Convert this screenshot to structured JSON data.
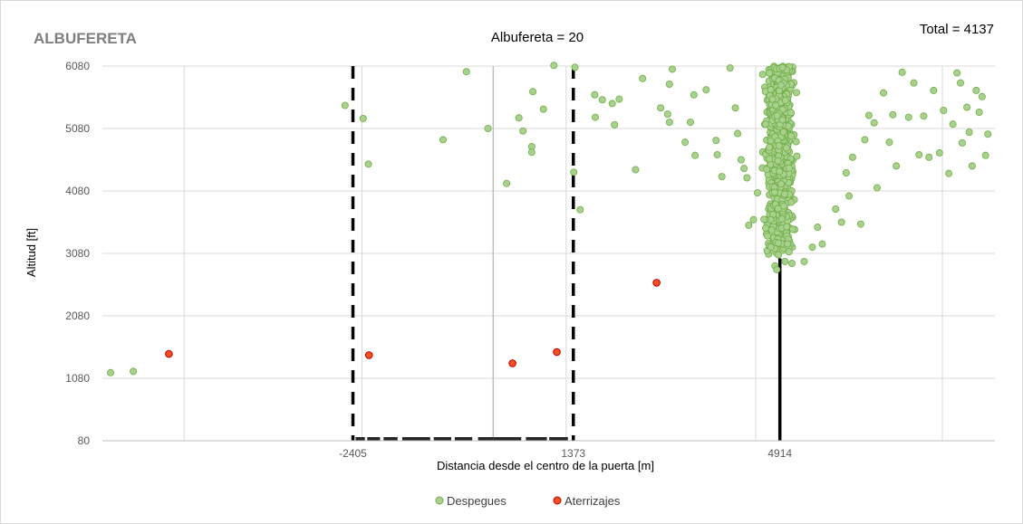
{
  "chart_data": {
    "type": "scatter",
    "title": "ALBUFERETA",
    "subtitle": "Albufereta =  20",
    "total_label": "Total =  4137",
    "xlabel": "Distancia desde el centro de la puerta [m]",
    "ylabel": "Altitud [ft]",
    "xlim": [
      -6700,
      8600
    ],
    "ylim": [
      80,
      6080
    ],
    "y_ticks": [
      80,
      1080,
      2080,
      3080,
      4080,
      5080,
      6080
    ],
    "x_ticks": [
      {
        "value": -2405,
        "label": "-2405"
      },
      {
        "value": 1373,
        "label": "1373"
      },
      {
        "value": 4914,
        "label": "4914"
      }
    ],
    "x_gridlines": [
      -5300,
      -2250,
      1250,
      4500,
      7700
    ],
    "grid": true,
    "legend_position": "bottom",
    "reference_lines": [
      {
        "x": -2405,
        "style": "dashed",
        "color": "#000000"
      },
      {
        "x": 1373,
        "style": "dashed",
        "color": "#000000"
      },
      {
        "x": 4914,
        "style": "solid",
        "color": "#000000",
        "y_range": [
          80,
          3000
        ]
      },
      {
        "x": 0,
        "style": "solid",
        "color": "#bfbfbf"
      }
    ],
    "series": [
      {
        "name": "Despegues",
        "color": "#a9d18e",
        "edge_color": "#70ad47",
        "points": [
          {
            "x": -6560,
            "y": 1170
          },
          {
            "x": -6170,
            "y": 1190
          },
          {
            "x": -2540,
            "y": 5450
          },
          {
            "x": -2230,
            "y": 5240
          },
          {
            "x": -2140,
            "y": 4510
          },
          {
            "x": -860,
            "y": 4900
          },
          {
            "x": -460,
            "y": 5990
          },
          {
            "x": -90,
            "y": 5080
          },
          {
            "x": 230,
            "y": 4200
          },
          {
            "x": 440,
            "y": 5250
          },
          {
            "x": 510,
            "y": 5040
          },
          {
            "x": 680,
            "y": 5670
          },
          {
            "x": 660,
            "y": 4790
          },
          {
            "x": 660,
            "y": 4700
          },
          {
            "x": 860,
            "y": 5390
          },
          {
            "x": 1040,
            "y": 6090
          },
          {
            "x": 1400,
            "y": 6060
          },
          {
            "x": 1380,
            "y": 4380
          },
          {
            "x": 1490,
            "y": 3780
          },
          {
            "x": 1740,
            "y": 5620
          },
          {
            "x": 1750,
            "y": 5260
          },
          {
            "x": 1870,
            "y": 5540
          },
          {
            "x": 2040,
            "y": 5480
          },
          {
            "x": 2160,
            "y": 5550
          },
          {
            "x": 2080,
            "y": 5140
          },
          {
            "x": 2440,
            "y": 4420
          },
          {
            "x": 2560,
            "y": 5880
          },
          {
            "x": 2870,
            "y": 5410
          },
          {
            "x": 2990,
            "y": 5310
          },
          {
            "x": 3020,
            "y": 5180
          },
          {
            "x": 3020,
            "y": 5790
          },
          {
            "x": 3070,
            "y": 6030
          },
          {
            "x": 3290,
            "y": 4860
          },
          {
            "x": 3380,
            "y": 5180
          },
          {
            "x": 3440,
            "y": 5620
          },
          {
            "x": 3460,
            "y": 4650
          },
          {
            "x": 3650,
            "y": 5700
          },
          {
            "x": 3820,
            "y": 4890
          },
          {
            "x": 3840,
            "y": 4660
          },
          {
            "x": 3920,
            "y": 4310
          },
          {
            "x": 4060,
            "y": 6050
          },
          {
            "x": 4150,
            "y": 5410
          },
          {
            "x": 4190,
            "y": 5000
          },
          {
            "x": 4250,
            "y": 4580
          },
          {
            "x": 4300,
            "y": 4440
          },
          {
            "x": 4350,
            "y": 4290
          },
          {
            "x": 4380,
            "y": 3530
          },
          {
            "x": 4460,
            "y": 3620
          },
          {
            "x": 4530,
            "y": 4050
          },
          {
            "x": 4700,
            "y": 3360
          },
          {
            "x": 4760,
            "y": 3180
          },
          {
            "x": 4830,
            "y": 2880
          },
          {
            "x": 4860,
            "y": 2820
          },
          {
            "x": 5000,
            "y": 2950
          },
          {
            "x": 5120,
            "y": 2920
          },
          {
            "x": 5330,
            "y": 2950
          },
          {
            "x": 5470,
            "y": 3180
          },
          {
            "x": 5560,
            "y": 3500
          },
          {
            "x": 5640,
            "y": 3230
          },
          {
            "x": 5870,
            "y": 3790
          },
          {
            "x": 5970,
            "y": 3580
          },
          {
            "x": 6050,
            "y": 4370
          },
          {
            "x": 6100,
            "y": 4000
          },
          {
            "x": 6160,
            "y": 4620
          },
          {
            "x": 6300,
            "y": 3550
          },
          {
            "x": 6370,
            "y": 4900
          },
          {
            "x": 6440,
            "y": 5290
          },
          {
            "x": 6530,
            "y": 5170
          },
          {
            "x": 6580,
            "y": 4130
          },
          {
            "x": 6690,
            "y": 5650
          },
          {
            "x": 6790,
            "y": 4860
          },
          {
            "x": 6850,
            "y": 5300
          },
          {
            "x": 6910,
            "y": 4480
          },
          {
            "x": 7010,
            "y": 5980
          },
          {
            "x": 7120,
            "y": 5260
          },
          {
            "x": 7210,
            "y": 5810
          },
          {
            "x": 7300,
            "y": 4660
          },
          {
            "x": 7380,
            "y": 5280
          },
          {
            "x": 7470,
            "y": 4620
          },
          {
            "x": 7550,
            "y": 5690
          },
          {
            "x": 7650,
            "y": 4690
          },
          {
            "x": 7720,
            "y": 5370
          },
          {
            "x": 7810,
            "y": 4360
          },
          {
            "x": 7880,
            "y": 5150
          },
          {
            "x": 7950,
            "y": 5970
          },
          {
            "x": 8010,
            "y": 5810
          },
          {
            "x": 8040,
            "y": 4850
          },
          {
            "x": 8120,
            "y": 5420
          },
          {
            "x": 8160,
            "y": 5020
          },
          {
            "x": 8210,
            "y": 4480
          },
          {
            "x": 8280,
            "y": 5690
          },
          {
            "x": 8330,
            "y": 5340
          },
          {
            "x": 8380,
            "y": 5590
          },
          {
            "x": 8440,
            "y": 4650
          },
          {
            "x": 8480,
            "y": 4990
          }
        ],
        "cluster": {
          "x_range": [
            4450,
            5400
          ],
          "y_range": [
            3050,
            6080
          ],
          "x_center": 4914,
          "count": 1100
        }
      },
      {
        "name": "Aterrizajes",
        "color": "#f25022",
        "edge_color": "#c00000",
        "points": [
          {
            "x": -5560,
            "y": 1470
          },
          {
            "x": -2130,
            "y": 1450
          },
          {
            "x": 330,
            "y": 1320
          },
          {
            "x": 1090,
            "y": 1500
          },
          {
            "x": 2800,
            "y": 2610
          }
        ]
      }
    ]
  }
}
